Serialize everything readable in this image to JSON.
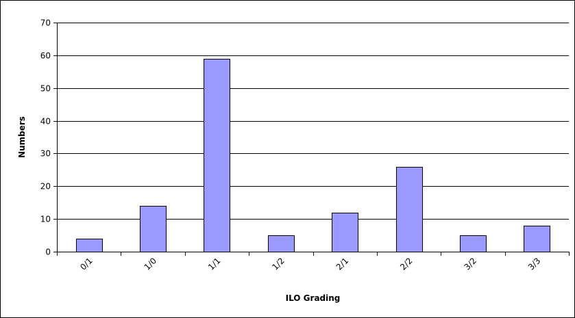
{
  "chart_data": {
    "type": "bar",
    "title": "",
    "xlabel": "ILO Grading",
    "ylabel": "Numbers",
    "categories": [
      "0/1",
      "1/0",
      "1/1",
      "1/2",
      "2/1",
      "2/2",
      "3/2",
      "3/3"
    ],
    "values": [
      4,
      14,
      59,
      5,
      12,
      26,
      5,
      8
    ],
    "ylim": [
      0,
      70
    ],
    "yticks": [
      0,
      10,
      20,
      30,
      40,
      50,
      60,
      70
    ],
    "grid": true,
    "legend": "none",
    "bar_color": "#9999ff"
  }
}
